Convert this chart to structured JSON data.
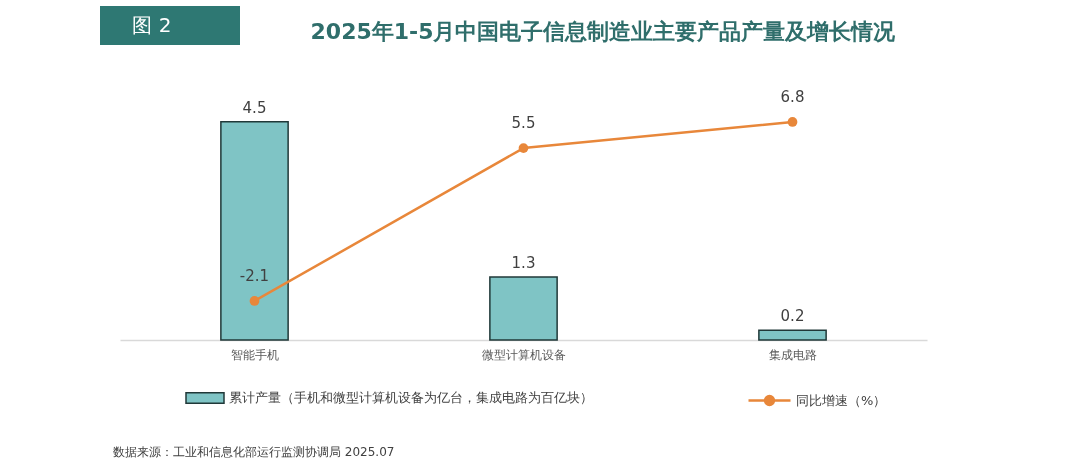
{
  "chart_data": {
    "type": "bar",
    "title": "2025年1-5月中国电子信息制造业主要产品产量及增长情况",
    "annotations": [
      "图 2",
      "数据来源：工业和信息化部运行监测协调局 2025.07"
    ],
    "categories": [
      "智能手机",
      "微型计算机设备",
      "集成电路"
    ],
    "series": [
      {
        "name": "累计产量（手机和微型计算机设备为亿台，集成电路为百亿块）",
        "color": "#7fc4c5",
        "values": [
          4.5,
          1.3,
          0.2
        ]
      },
      {
        "name": "同比增速（%）",
        "type": "line",
        "axis": "y2",
        "color": "#e8873a",
        "values": [
          -2.1,
          5.5,
          6.8
        ]
      }
    ],
    "data_labels": true,
    "legend": "bottom",
    "tick_labels": "x",
    "marker": "circle",
    "line_style": "solid"
  }
}
